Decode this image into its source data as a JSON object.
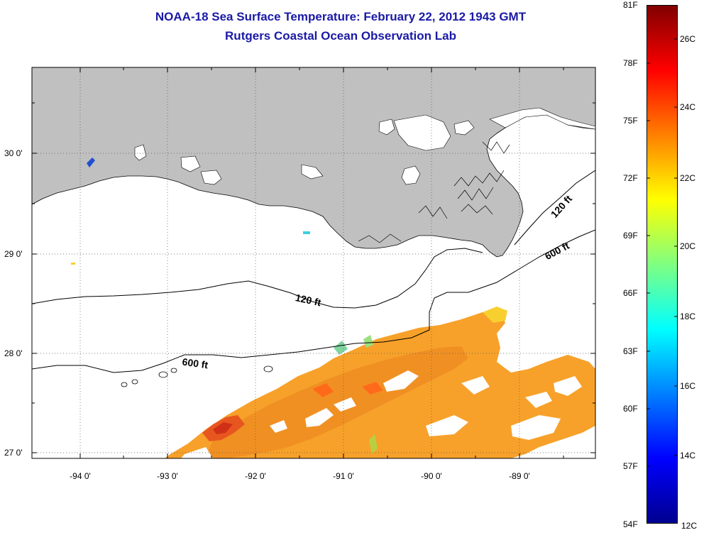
{
  "title": {
    "line1": "NOAA-18 Sea Surface Temperature:  February 22, 2012 1943 GMT",
    "line2": "Rutgers Coastal Ocean Observation Lab"
  },
  "map": {
    "lat_ticks": [
      "30 0'",
      "29 0'",
      "28 0'",
      "27 0'"
    ],
    "lon_ticks": [
      "-94 0'",
      "-93 0'",
      "-92 0'",
      "-91 0'",
      "-90 0'",
      "-89 0'"
    ],
    "contour_labels": [
      "120 ft",
      "600 ft",
      "120 ft",
      "600 ft"
    ],
    "colors": {
      "land": "#c0c0c0",
      "ocean": "#ffffff",
      "contour": "#000000"
    }
  },
  "colorbar": {
    "fahrenheit_labels": [
      "81F",
      "78F",
      "75F",
      "72F",
      "69F",
      "66F",
      "63F",
      "60F",
      "57F",
      "54F"
    ],
    "celsius_labels": [
      "26C",
      "24C",
      "22C",
      "20C",
      "18C",
      "16C",
      "14C",
      "12C"
    ],
    "range_f": [
      54,
      81
    ],
    "range_c": [
      12,
      27.2
    ],
    "colormap": "jet"
  }
}
